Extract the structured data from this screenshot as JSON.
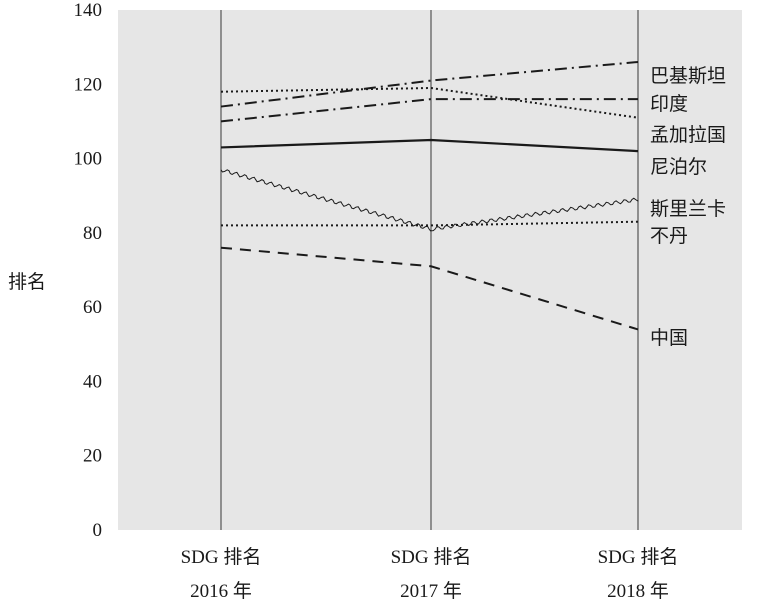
{
  "chart_data": {
    "type": "line",
    "categories": [
      {
        "line1": "SDG 排名",
        "line2": "2016 年"
      },
      {
        "line1": "SDG 排名",
        "line2": "2017 年"
      },
      {
        "line1": "SDG 排名",
        "line2": "2018 年"
      }
    ],
    "ylabel": "排名",
    "ylim": [
      0,
      140
    ],
    "yticks": [
      0,
      20,
      40,
      60,
      80,
      100,
      120,
      140
    ],
    "plot_background": "#e6e6e6",
    "line_color": "#1a1a1a",
    "series": [
      {
        "name": "巴基斯坦",
        "values": [
          114,
          121,
          126
        ],
        "style": "dashdot"
      },
      {
        "name": "印度",
        "values": [
          110,
          116,
          116
        ],
        "style": "dashdot"
      },
      {
        "name": "孟加拉国",
        "values": [
          118,
          119,
          111
        ],
        "style": "dotted"
      },
      {
        "name": "尼泊尔",
        "values": [
          103,
          105,
          102
        ],
        "style": "solid"
      },
      {
        "name": "斯里兰卡",
        "values": [
          97,
          81,
          89
        ],
        "style": "wavy"
      },
      {
        "name": "不丹",
        "values": [
          82,
          82,
          83
        ],
        "style": "dotted"
      },
      {
        "name": "中国",
        "values": [
          76,
          71,
          54
        ],
        "style": "dashed"
      }
    ]
  }
}
